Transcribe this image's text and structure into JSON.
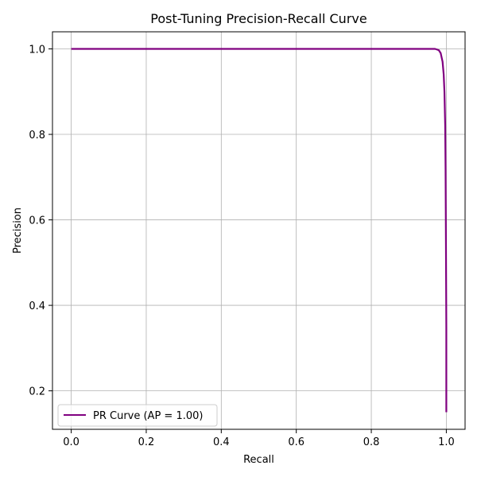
{
  "chart_data": {
    "type": "line",
    "title": "Post-Tuning Precision-Recall Curve",
    "xlabel": "Recall",
    "ylabel": "Precision",
    "xlim": [
      -0.05,
      1.05
    ],
    "ylim": [
      0.11,
      1.04
    ],
    "xticks": [
      0.0,
      0.2,
      0.4,
      0.6,
      0.8,
      1.0
    ],
    "xtick_labels": [
      "0.0",
      "0.2",
      "0.4",
      "0.6",
      "0.8",
      "1.0"
    ],
    "yticks": [
      0.2,
      0.4,
      0.6,
      0.8,
      1.0
    ],
    "ytick_labels": [
      "0.2",
      "0.4",
      "0.6",
      "0.8",
      "1.0"
    ],
    "grid": true,
    "legend_position": "lower-left",
    "series": [
      {
        "name": "PR Curve (AP = 1.00)",
        "color": "#800080",
        "x": [
          0.0,
          0.2,
          0.4,
          0.6,
          0.8,
          0.95,
          0.97,
          0.98,
          0.985,
          0.99,
          0.993,
          0.995,
          0.997,
          0.998,
          0.999,
          1.0,
          1.0
        ],
        "y": [
          1.0,
          1.0,
          1.0,
          1.0,
          1.0,
          1.0,
          1.0,
          0.997,
          0.99,
          0.97,
          0.94,
          0.9,
          0.82,
          0.72,
          0.55,
          0.35,
          0.15
        ]
      }
    ]
  }
}
